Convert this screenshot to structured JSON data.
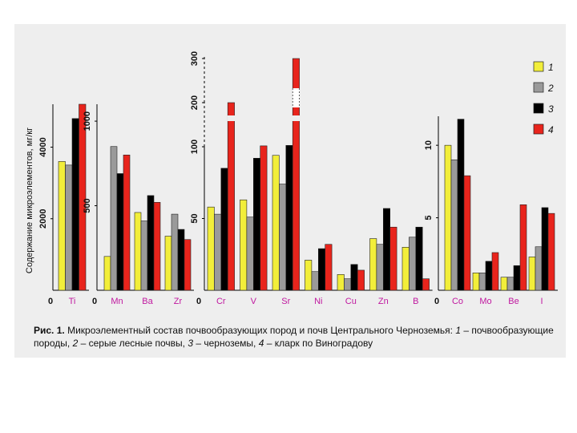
{
  "colors": {
    "background": "#ffffff",
    "panel": "#eeeeee",
    "series": [
      "#f2ee3a",
      "#9a9a9a",
      "#000000",
      "#e8241c"
    ],
    "tick_label": "#c0179f",
    "axis": "#000000"
  },
  "caption": {
    "fig_label": "Рис. 1.",
    "text_a": " Микроэлементный состав почвообразующих пород и почв Центрального Черноземья: ",
    "n1": "1",
    "t1": " – почвообразую­щие породы, ",
    "n2": "2",
    "t2": " – серые лесные почвы, ",
    "n3": "3",
    "t3": " – черноземы, ",
    "n4": "4",
    "t4": " – кларк по Виноградову"
  },
  "chart_data": {
    "type": "bar",
    "ylabel": "Содержание микроэлементов, мг/кг",
    "legend": {
      "position": "right",
      "entries": [
        "1",
        "2",
        "3",
        "4"
      ]
    },
    "series_descriptions": [
      "почвообразующие породы",
      "серые лесные почвы",
      "черноземы",
      "кларк по Виноградову"
    ],
    "panels": [
      {
        "categories": [
          "Ti"
        ],
        "ticks": [
          0,
          2000,
          4000
        ],
        "tick_labels": [
          "0",
          "2000",
          "4000"
        ],
        "ylim": [
          0,
          5200
        ],
        "values": [
          [
            3600,
            3500,
            4800,
            5200
          ]
        ]
      },
      {
        "categories": [
          "Mn",
          "Ba",
          "Zr"
        ],
        "ticks": [
          0,
          500,
          1000
        ],
        "tick_labels": [
          "0",
          "500",
          "1000"
        ],
        "ylim": [
          0,
          1100
        ],
        "values": [
          [
            200,
            850,
            690,
            800
          ],
          [
            460,
            410,
            560,
            520
          ],
          [
            320,
            450,
            360,
            300
          ]
        ]
      },
      {
        "categories": [
          "Cr",
          "V",
          "Sr",
          "Ni",
          "Cu",
          "Zn",
          "B"
        ],
        "ticks": [
          0,
          50,
          100,
          200,
          300
        ],
        "tick_labels": [
          "0",
          "50",
          "100",
          "200",
          "300"
        ],
        "ylim": [
          0,
          300
        ],
        "axis_break": "100-200",
        "values": [
          [
            58,
            53,
            85,
            200
          ],
          [
            63,
            51,
            92,
            102
          ],
          [
            94,
            74,
            103,
            300
          ],
          [
            21,
            13,
            29,
            32
          ],
          [
            11,
            8,
            18,
            14
          ],
          [
            36,
            32,
            57,
            44
          ],
          [
            30,
            37,
            44,
            8
          ]
        ]
      },
      {
        "categories": [
          "Co",
          "Mo",
          "Be",
          "I"
        ],
        "ticks": [
          0,
          5,
          10
        ],
        "tick_labels": [
          "0",
          "5",
          "10"
        ],
        "ylim": [
          0,
          12
        ],
        "values": [
          [
            10.0,
            9.0,
            11.8,
            7.9
          ],
          [
            1.2,
            1.2,
            2.0,
            2.6
          ],
          [
            0.9,
            0.9,
            1.7,
            5.9
          ],
          [
            2.3,
            3.0,
            5.7,
            5.3
          ]
        ]
      }
    ]
  }
}
